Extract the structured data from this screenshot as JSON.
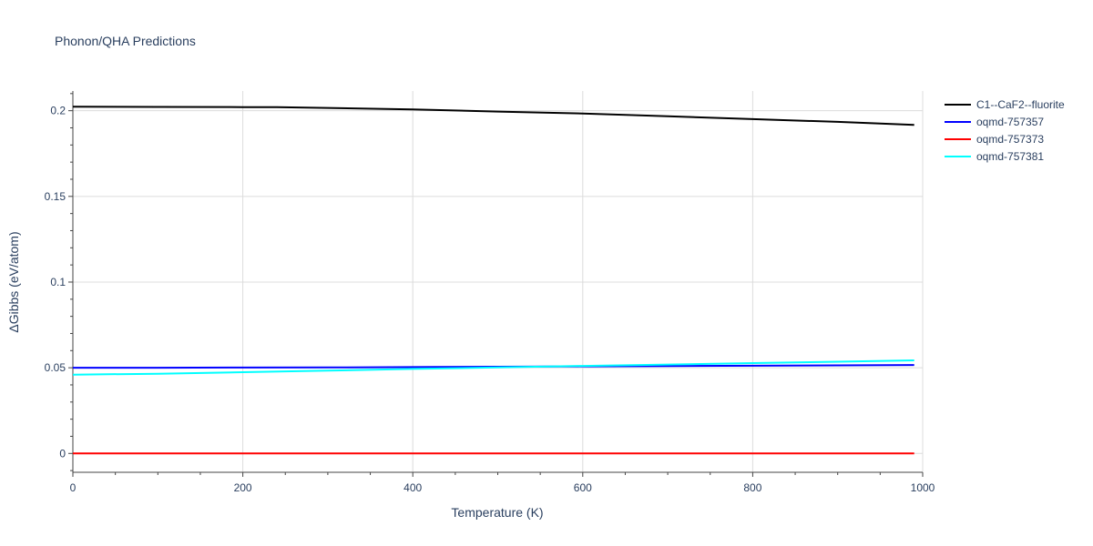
{
  "chart_data": {
    "type": "line",
    "title": "Phonon/QHA Predictions",
    "xlabel": "Temperature (K)",
    "ylabel": "ΔGibbs (eV/atom)",
    "xlim": [
      0,
      1000
    ],
    "ylim": [
      -0.011,
      0.2115
    ],
    "x_ticks": [
      0,
      200,
      400,
      600,
      800,
      1000
    ],
    "x_tick_labels": [
      "0",
      "200",
      "400",
      "600",
      "800",
      "1000"
    ],
    "y_ticks": [
      0,
      0.05,
      0.1,
      0.15,
      0.2
    ],
    "y_tick_labels": [
      "0",
      "0.05",
      "0.1",
      "0.15",
      "0.2"
    ],
    "grid": true,
    "legend_position": "top-right-outside",
    "series": [
      {
        "name": "C1--CaF2--fluorite",
        "color": "#000000",
        "x": [
          0,
          100,
          200,
          240,
          300,
          400,
          500,
          600,
          700,
          800,
          900,
          990
        ],
        "y": [
          0.2023,
          0.2022,
          0.2021,
          0.2021,
          0.2016,
          0.2007,
          0.1995,
          0.1984,
          0.1968,
          0.1951,
          0.1935,
          0.1917
        ]
      },
      {
        "name": "oqmd-757357",
        "color": "#0000ff",
        "x": [
          0,
          100,
          200,
          300,
          400,
          500,
          600,
          700,
          800,
          900,
          990
        ],
        "y": [
          0.05,
          0.05,
          0.0501,
          0.0502,
          0.0504,
          0.0506,
          0.0508,
          0.051,
          0.0512,
          0.0514,
          0.0516
        ]
      },
      {
        "name": "oqmd-757373",
        "color": "#ff0000",
        "x": [
          0,
          100,
          200,
          300,
          400,
          500,
          600,
          700,
          800,
          900,
          990
        ],
        "y": [
          0,
          0,
          0,
          0,
          0,
          0,
          0,
          0,
          0,
          0,
          0
        ]
      },
      {
        "name": "oqmd-757381",
        "color": "#00ffff",
        "x": [
          0,
          100,
          200,
          300,
          400,
          500,
          600,
          700,
          800,
          900,
          990
        ],
        "y": [
          0.046,
          0.0465,
          0.0474,
          0.0483,
          0.0493,
          0.0502,
          0.0511,
          0.0519,
          0.0527,
          0.0535,
          0.0543
        ]
      }
    ]
  }
}
